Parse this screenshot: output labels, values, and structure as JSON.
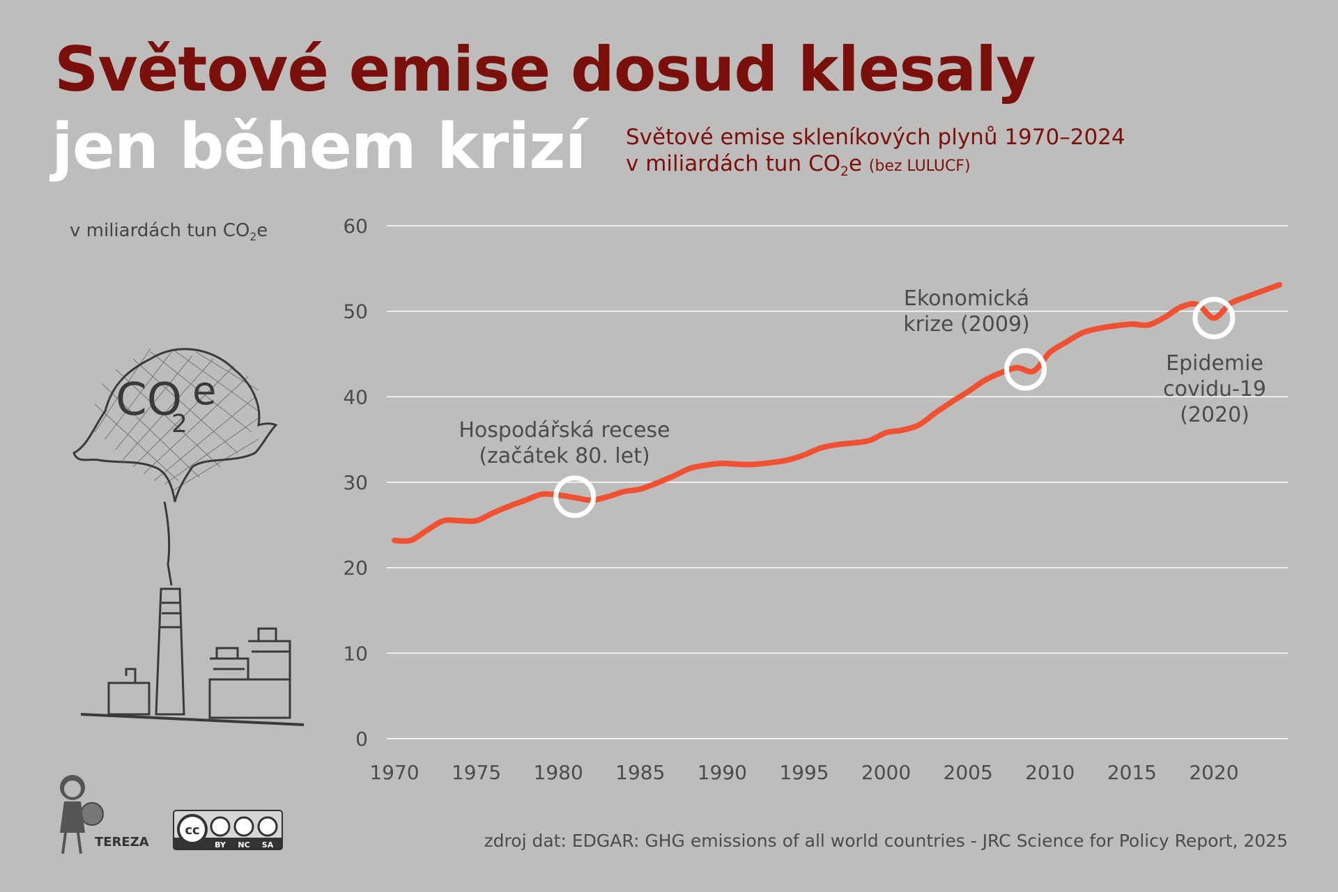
{
  "title_line1": "Světové emise dosud klesaly",
  "title_line2": "jen během krizí",
  "subtitle_line1": "Světové emise skleníkových plynů 1970–2024",
  "subtitle_line2_pre": "v miliardách tun CO",
  "subtitle_line2_sub": "2",
  "subtitle_line2_post": "e",
  "subtitle_note": "(bez LULUCF)",
  "unit_label_pre": "v miliardách tun CO",
  "unit_label_sub": "2",
  "unit_label_post": "e",
  "source": "zdroj dat: EDGAR: GHG emissions of all world countries - JRC Science for Policy Report, 2025",
  "logo": {
    "name": "TEREZA",
    "license": "CC BY NC SA",
    "license_parts": [
      "BY",
      "NC",
      "SA"
    ]
  },
  "illustration": {
    "text": "CO2e",
    "icon": "factory-smokestack-icon"
  },
  "colors": {
    "title": "#7a100c",
    "line": "#f05133",
    "background": "#bfbdbb",
    "marker": "#ffffff"
  },
  "chart_data": {
    "type": "line",
    "title": "Světové emise skleníkových plynů 1970–2024",
    "ylabel": "v miliardách tun CO2e",
    "ylim": [
      0,
      60
    ],
    "xlim": [
      1970,
      2024
    ],
    "yticks": [
      0,
      10,
      20,
      30,
      40,
      50,
      60
    ],
    "xticks": [
      1970,
      1975,
      1980,
      1985,
      1990,
      1995,
      2000,
      2005,
      2010,
      2015,
      2020
    ],
    "grid": true,
    "series": [
      {
        "x": [
          1970,
          1971,
          1972,
          1973,
          1974,
          1975,
          1976,
          1977,
          1978,
          1979,
          1980,
          1981,
          1982,
          1983,
          1984,
          1985,
          1986,
          1987,
          1988,
          1989,
          1990,
          1991,
          1992,
          1993,
          1994,
          1995,
          1996,
          1997,
          1998,
          1999,
          2000,
          2001,
          2002,
          2003,
          2004,
          2005,
          2006,
          2007,
          2008,
          2009,
          2010,
          2011,
          2012,
          2013,
          2014,
          2015,
          2016,
          2017,
          2018,
          2019,
          2020,
          2021,
          2022,
          2023,
          2024
        ],
        "y": [
          23.2,
          23.2,
          24.4,
          25.5,
          25.5,
          25.5,
          26.4,
          27.2,
          27.9,
          28.6,
          28.5,
          28.2,
          27.9,
          28.3,
          28.9,
          29.2,
          29.9,
          30.7,
          31.6,
          32.0,
          32.2,
          32.1,
          32.1,
          32.3,
          32.6,
          33.2,
          34.0,
          34.4,
          34.6,
          34.9,
          35.8,
          36.1,
          36.7,
          38.1,
          39.4,
          40.6,
          41.9,
          42.8,
          43.4,
          43.0,
          45.2,
          46.4,
          47.5,
          48.0,
          48.3,
          48.5,
          48.4,
          49.3,
          50.5,
          50.8,
          49.2,
          50.9,
          51.7,
          52.4,
          53.1
        ]
      }
    ],
    "annotations": [
      {
        "text_lines": [
          "Hospodářská recese",
          "(začátek 80. let)"
        ],
        "x": 1981,
        "y": 28.3
      },
      {
        "text_lines": [
          "Ekonomická",
          "krize (2009)"
        ],
        "x": 2008.5,
        "y": 43.2
      },
      {
        "text_lines": [
          "Epidemie",
          "covidu-19",
          "(2020)"
        ],
        "x": 2020,
        "y": 49.2
      }
    ]
  }
}
